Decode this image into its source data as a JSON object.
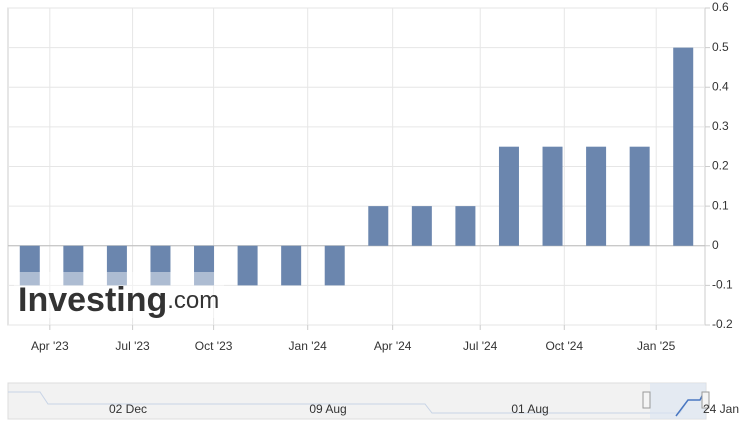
{
  "chart_data": {
    "type": "bar",
    "categories": [
      null,
      null,
      null,
      null,
      null,
      null,
      null,
      null,
      null,
      null,
      null,
      null,
      null,
      null,
      null,
      null
    ],
    "values": [
      -0.1,
      -0.1,
      -0.1,
      -0.1,
      -0.1,
      -0.1,
      -0.1,
      -0.1,
      0.1,
      0.1,
      0.1,
      0.25,
      0.25,
      0.25,
      0.25,
      0.5
    ],
    "color": "#6b86ae",
    "ylim": [
      -0.2,
      0.6
    ],
    "yticks": [
      -0.2,
      -0.1,
      0,
      0.1,
      0.2,
      0.3,
      0.4,
      0.5,
      0.6
    ],
    "xticks": [
      {
        "value": 0.46,
        "label": "Apr '23"
      },
      {
        "value": 2.36,
        "label": "Jul '23"
      },
      {
        "value": 4.22,
        "label": "Oct '23"
      },
      {
        "value": 6.38,
        "label": "Jan '24"
      },
      {
        "value": 8.33,
        "label": "Apr '24"
      },
      {
        "value": 10.34,
        "label": "Jul '24"
      },
      {
        "value": 12.27,
        "label": "Oct '24"
      },
      {
        "value": 14.38,
        "label": "Jan '25"
      }
    ],
    "grid": true,
    "watermark": {
      "brand": "Investing",
      "suffix": ".com"
    },
    "navigator": {
      "labels": [
        "02 Dec",
        "09 Aug",
        "01 Aug",
        "24 Jan"
      ]
    }
  }
}
